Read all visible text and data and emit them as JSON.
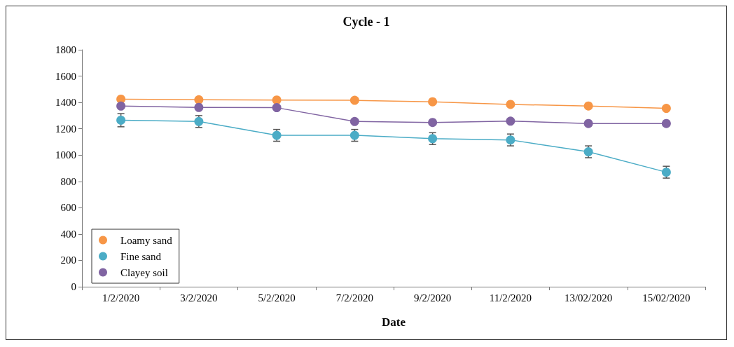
{
  "chart_data": {
    "type": "line",
    "title": "Cycle - 1",
    "xlabel": "Date",
    "categories": [
      "1/2/2020",
      "3/2/2020",
      "5/2/2020",
      "7/2/2020",
      "9/2/2020",
      "11/2/2020",
      "13/02/2020",
      "15/02/2020"
    ],
    "series": [
      {
        "name": "Loamy sand",
        "color": "#f79646",
        "values": [
          1425,
          1420,
          1418,
          1416,
          1405,
          1385,
          1373,
          1355
        ]
      },
      {
        "name": "Fine sand",
        "color": "#4bacc6",
        "values": [
          1265,
          1255,
          1150,
          1150,
          1125,
          1115,
          1025,
          870
        ],
        "errors": [
          50,
          45,
          45,
          45,
          45,
          45,
          45,
          45
        ]
      },
      {
        "name": "Clayey soil",
        "color": "#8064a2",
        "values": [
          1372,
          1362,
          1360,
          1255,
          1248,
          1258,
          1240,
          1240
        ]
      }
    ],
    "ylim": [
      0,
      1800
    ],
    "yticks": [
      0,
      200,
      400,
      600,
      800,
      1000,
      1200,
      1400,
      1600,
      1800
    ],
    "grid": false,
    "legend": "bottom left",
    "marker": "circle",
    "line_style": "solid"
  }
}
